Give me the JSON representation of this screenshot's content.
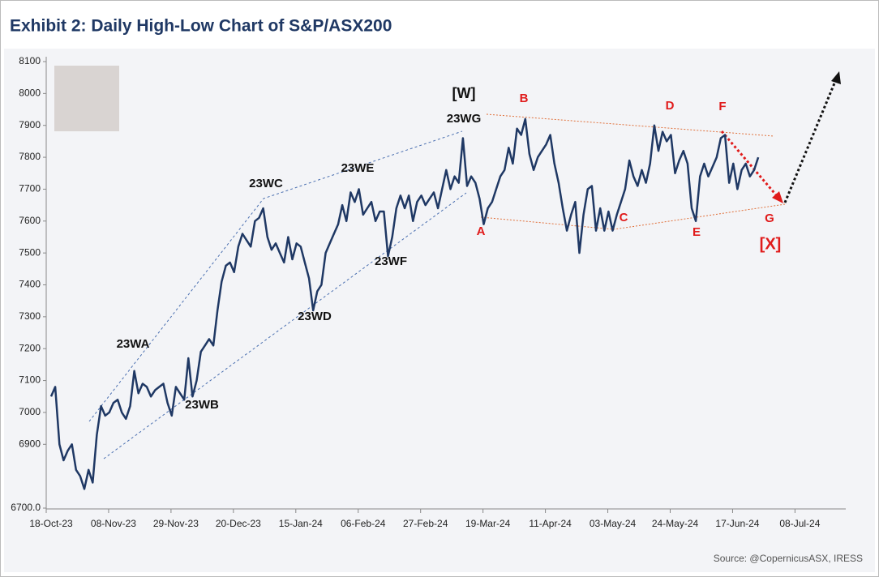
{
  "chart_data": {
    "type": "line",
    "title": "Exhibit 2: Daily High-Low Chart of S&P/ASX200",
    "source": "Source: @CopernicusASX, IRESS",
    "categories": [
      "18-Oct-23",
      null,
      null,
      null,
      null,
      null,
      null,
      null,
      null,
      null,
      null,
      null,
      null,
      null,
      null,
      "08-Nov-23",
      null,
      null,
      null,
      null,
      null,
      null,
      null,
      null,
      null,
      null,
      null,
      null,
      null,
      null,
      "29-Nov-23",
      null,
      null,
      null,
      null,
      null,
      null,
      null,
      null,
      null,
      null,
      null,
      null,
      null,
      null,
      "20-Dec-23",
      null,
      null,
      null,
      null,
      null,
      null,
      null,
      null,
      null,
      null,
      null,
      null,
      null,
      null,
      "15-Jan-24",
      null,
      null,
      null,
      null,
      null,
      null,
      null,
      null,
      null,
      null,
      null,
      null,
      null,
      null,
      "06-Feb-24",
      null,
      null,
      null,
      null,
      null,
      null,
      null,
      null,
      null,
      null,
      null,
      null,
      null,
      null,
      "27-Feb-24",
      null,
      null,
      null,
      null,
      null,
      null,
      null,
      null,
      null,
      null,
      null,
      null,
      null,
      null,
      "19-Mar-24",
      null,
      null,
      null,
      null,
      null,
      null,
      null,
      null,
      null,
      null,
      null,
      null,
      null,
      null,
      "11-Apr-24",
      null,
      null,
      null,
      null,
      null,
      null,
      null,
      null,
      null,
      null,
      null,
      null,
      null,
      null,
      "03-May-24",
      null,
      null,
      null,
      null,
      null,
      null,
      null,
      null,
      null,
      null,
      null,
      null,
      null,
      null,
      "24-May-24",
      null,
      null,
      null,
      null,
      null,
      null,
      null,
      null,
      null,
      null,
      null,
      null,
      null,
      null,
      "17-Jun-24",
      null,
      null,
      null,
      null,
      null,
      null,
      null,
      null,
      null,
      null,
      null,
      null,
      null,
      null,
      "08-Jul-24",
      null,
      null,
      null,
      null,
      null,
      null,
      null,
      null,
      null,
      null
    ],
    "series": [
      {
        "name": "S&P/ASX200",
        "color": "#1f3864",
        "values": [
          7050,
          7080,
          6900,
          6850,
          6880,
          6900,
          6820,
          6800,
          6760,
          6820,
          6780,
          6930,
          7020,
          6990,
          7000,
          7030,
          7040,
          7000,
          6980,
          7020,
          7130,
          7060,
          7090,
          7080,
          7050,
          7070,
          7080,
          7090,
          7030,
          6990,
          7080,
          7060,
          7040,
          7170,
          7050,
          7100,
          7190,
          7210,
          7230,
          7210,
          7320,
          7410,
          7460,
          7470,
          7440,
          7520,
          7560,
          7540,
          7520,
          7600,
          7610,
          7640,
          7550,
          7510,
          7530,
          7500,
          7470,
          7550,
          7480,
          7530,
          7520,
          7470,
          7420,
          7320,
          7380,
          7400,
          7500,
          7530,
          7560,
          7590,
          7650,
          7600,
          7690,
          7660,
          7700,
          7620,
          7640,
          7660,
          7600,
          7630,
          7630,
          7490,
          7550,
          7640,
          7680,
          7640,
          7680,
          7600,
          7660,
          7680,
          7650,
          7670,
          7690,
          7640,
          7700,
          7760,
          7700,
          7740,
          7720,
          7860,
          7710,
          7740,
          7720,
          7670,
          7590,
          7640,
          7660,
          7700,
          7740,
          7760,
          7830,
          7780,
          7890,
          7870,
          7920,
          7810,
          7760,
          7800,
          7820,
          7840,
          7870,
          7780,
          7720,
          7640,
          7570,
          7620,
          7660,
          7500,
          7620,
          7700,
          7710,
          7570,
          7640,
          7570,
          7630,
          7570,
          7620,
          7660,
          7700,
          7790,
          7740,
          7710,
          7760,
          7720,
          7780,
          7900,
          7820,
          7880,
          7850,
          7870,
          7750,
          7790,
          7820,
          7780,
          7640,
          7600,
          7740,
          7780,
          7740,
          7770,
          7800,
          7860,
          7870,
          7720,
          7780,
          7700,
          7760,
          7780,
          7740,
          7760,
          7800,
          null,
          null,
          null,
          null,
          null,
          null,
          null,
          null,
          null,
          null,
          null,
          null,
          null,
          null,
          null,
          null,
          null,
          null,
          null,
          null
        ]
      }
    ],
    "ylim": [
      6700,
      8100
    ],
    "yticks": [
      {
        "value": 6700,
        "label": "6700.0"
      },
      6900,
      7000,
      7100,
      7200,
      7300,
      7400,
      7500,
      7600,
      7700,
      7800,
      7900,
      8000,
      8100
    ],
    "annotations": [
      "[W]",
      "23WG",
      "23WA",
      "23WB",
      "23WC",
      "23WD",
      "23WE",
      "23WF",
      "A",
      "B",
      "C",
      "D",
      "E",
      "F",
      "G",
      "[X]"
    ]
  }
}
